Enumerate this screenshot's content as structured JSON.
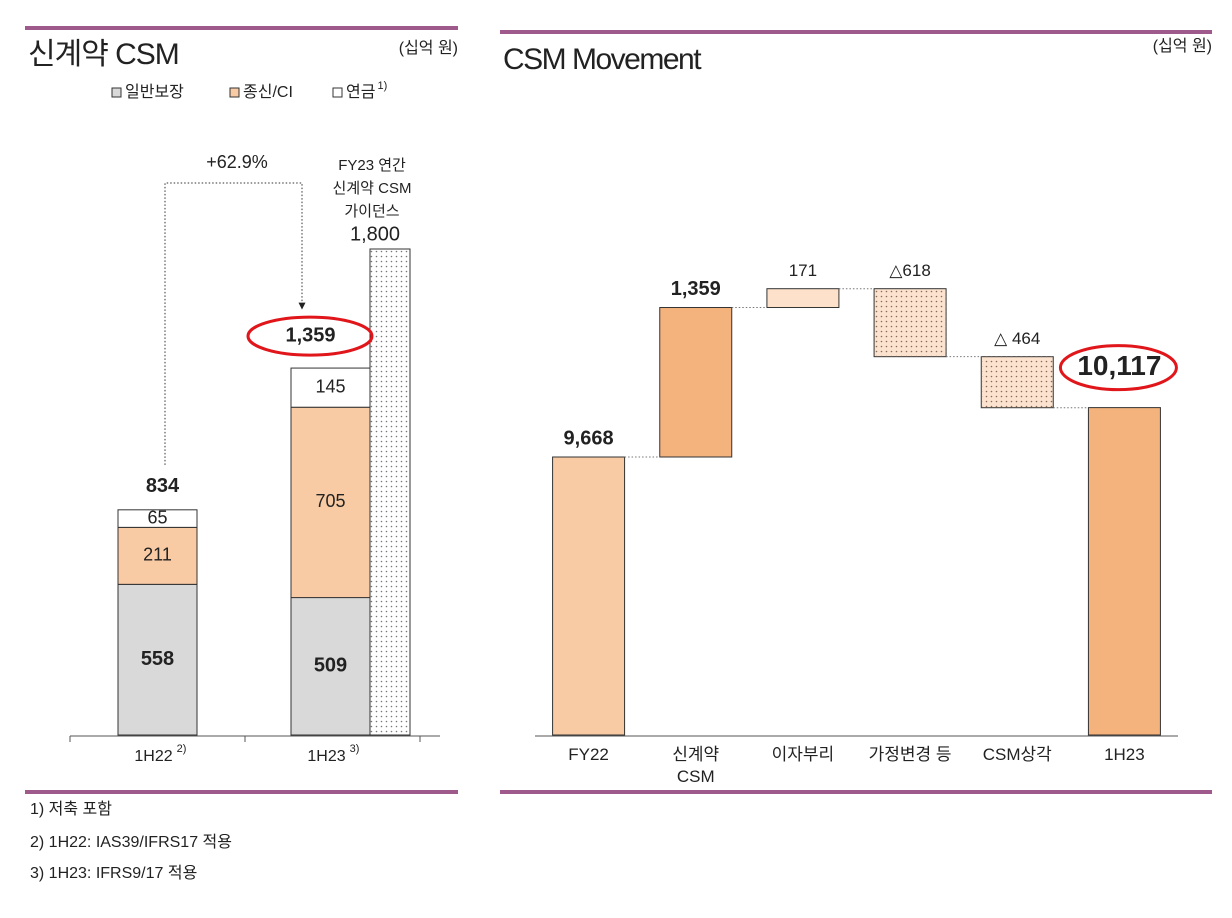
{
  "chart_data": [
    {
      "type": "stacked_bar",
      "title": "신계약 CSM",
      "unit": "(십억 원)",
      "categories": [
        "1H22",
        "1H23"
      ],
      "category_notes": [
        "2)",
        "3)"
      ],
      "series": [
        {
          "name": "일반보장",
          "color": "#d9d9d9",
          "values": [
            558,
            509
          ]
        },
        {
          "name": "종신/CI",
          "color": "#f9cba4",
          "values": [
            211,
            705
          ]
        },
        {
          "name": "연금",
          "note": "1)",
          "color": "#ffffff",
          "values": [
            65,
            145
          ]
        }
      ],
      "totals": {
        "values": [
          834,
          1359
        ],
        "value_labels": [
          "834",
          "1,359"
        ]
      },
      "guidance": {
        "label": "FY23 연간\n신계약 CSM\n가이던스",
        "value": 1800,
        "value_label": "1,800"
      },
      "growth_label": "+62.9%",
      "footnotes": [
        "1) 저축 포함",
        "2) 1H22: IAS39/IFRS17 적용",
        "3) 1H23: IFRS9/17 적용"
      ]
    },
    {
      "type": "waterfall",
      "title": "CSM Movement",
      "unit": "(십억 원)",
      "categories": [
        "FY22",
        "신계약\nCSM",
        "이자부리",
        "가정변경 등",
        "CSM상각",
        "1H23"
      ],
      "values": [
        9668,
        1359,
        171,
        -618,
        -464,
        10117
      ],
      "value_labels": [
        "9,668",
        "1,359",
        "171",
        "△618",
        "△ 464",
        "10,117"
      ],
      "measures": [
        "absolute",
        "relative",
        "relative",
        "relative",
        "relative",
        "absolute"
      ],
      "colors": [
        "#f9cba4",
        "#f4b27c",
        "#fde1ca",
        "#fbe3cf",
        "#fbe3cf",
        "#f4b27c"
      ]
    }
  ]
}
